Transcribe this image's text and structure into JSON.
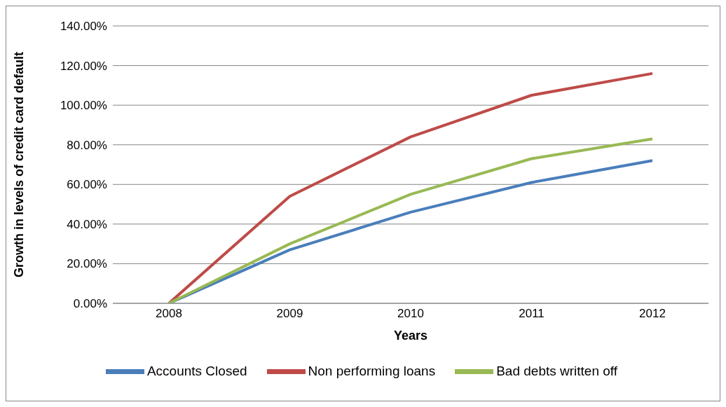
{
  "chart_data": {
    "type": "line",
    "xlabel": "Years",
    "ylabel": "Growth in levels of credit card default",
    "categories": [
      "2008",
      "2009",
      "2010",
      "2011",
      "2012"
    ],
    "series": [
      {
        "name": "Accounts Closed",
        "color": "#4a7ebb",
        "values": [
          0,
          27,
          46,
          61,
          72
        ]
      },
      {
        "name": "Non performing loans",
        "color": "#be4b48",
        "values": [
          0,
          54,
          84,
          105,
          116
        ]
      },
      {
        "name": "Bad debts written off",
        "color": "#98b954",
        "values": [
          0,
          30,
          55,
          73,
          83
        ]
      }
    ],
    "ylim": [
      0,
      140
    ],
    "yticks": [
      {
        "value": 0,
        "label": "0.00%"
      },
      {
        "value": 20,
        "label": "20.00%"
      },
      {
        "value": 40,
        "label": "40.00%"
      },
      {
        "value": 60,
        "label": "60.00%"
      },
      {
        "value": 80,
        "label": "80.00%"
      },
      {
        "value": 100,
        "label": "100.00%"
      },
      {
        "value": 120,
        "label": "120.00%"
      },
      {
        "value": 140,
        "label": "140.00%"
      }
    ],
    "grid": "y",
    "legend": "bottom",
    "marker": "none",
    "line_style": "solid"
  }
}
